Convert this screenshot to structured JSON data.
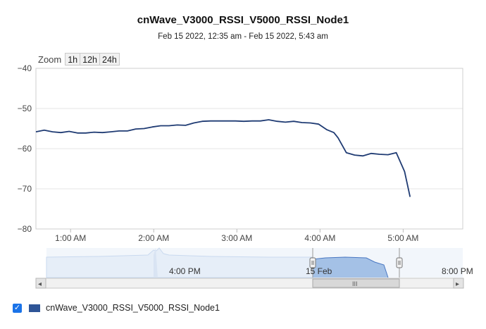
{
  "title": "cnWave_V3000_RSSI_V5000_RSSI_Node1",
  "subtitle": "Feb 15 2022, 12:35 am - Feb 15 2022, 5:43 am",
  "zoom": {
    "label": "Zoom",
    "buttons": [
      "1h",
      "12h",
      "24h"
    ]
  },
  "legend": {
    "label": "cnWave_V3000_RSSI_V5000_RSSI_Node1",
    "checked": true,
    "color": "#2f5597"
  },
  "navigator": {
    "labels": [
      "4:00 PM",
      "15 Feb",
      "8:00 PM"
    ],
    "scroll_grip": "III",
    "left_arrow": "◂",
    "right_arrow": "▸"
  },
  "colors": {
    "line": "#1f3b73",
    "grid": "#e6e6e6",
    "nav_fill": "#a4c1e6",
    "nav_line": "#4a78c2"
  },
  "chart_data": {
    "type": "line",
    "title": "cnWave_V3000_RSSI_V5000_RSSI_Node1",
    "subtitle": "Feb 15 2022, 12:35 am - Feb 15 2022, 5:43 am",
    "xlabel": "",
    "ylabel": "",
    "ylim": [
      -80,
      -40
    ],
    "yticks": [
      -40,
      -50,
      -60,
      -70,
      -80
    ],
    "x_tick_labels": [
      "1:00 AM",
      "2:00 AM",
      "3:00 AM",
      "4:00 AM",
      "5:00 AM"
    ],
    "x_tick_minutes": [
      60,
      120,
      180,
      240,
      300
    ],
    "xlim_minutes": [
      35,
      343
    ],
    "grid": true,
    "series": [
      {
        "name": "cnWave_V3000_RSSI_V5000_RSSI_Node1",
        "x_minutes": [
          35,
          41,
          47,
          53,
          59,
          65,
          71,
          77,
          83,
          89,
          95,
          101,
          107,
          113,
          119,
          125,
          131,
          137,
          143,
          149,
          155,
          161,
          167,
          173,
          179,
          185,
          191,
          197,
          203,
          209,
          215,
          221,
          227,
          233,
          239,
          245,
          250,
          253,
          259,
          265,
          271,
          277,
          283,
          289,
          295,
          301,
          305
        ],
        "values": [
          -55.8,
          -55.4,
          -55.8,
          -56.0,
          -55.7,
          -56.1,
          -56.1,
          -55.9,
          -56.0,
          -55.8,
          -55.6,
          -55.6,
          -55.1,
          -55.0,
          -54.6,
          -54.3,
          -54.3,
          -54.1,
          -54.2,
          -53.6,
          -53.2,
          -53.1,
          -53.1,
          -53.1,
          -53.1,
          -53.2,
          -53.1,
          -53.1,
          -52.8,
          -53.2,
          -53.4,
          -53.2,
          -53.5,
          -53.6,
          -53.9,
          -55.3,
          -56.0,
          -57.3,
          -61.0,
          -61.6,
          -61.8,
          -61.2,
          -61.4,
          -61.5,
          -61.0,
          -65.7,
          -72.0
        ]
      }
    ]
  }
}
